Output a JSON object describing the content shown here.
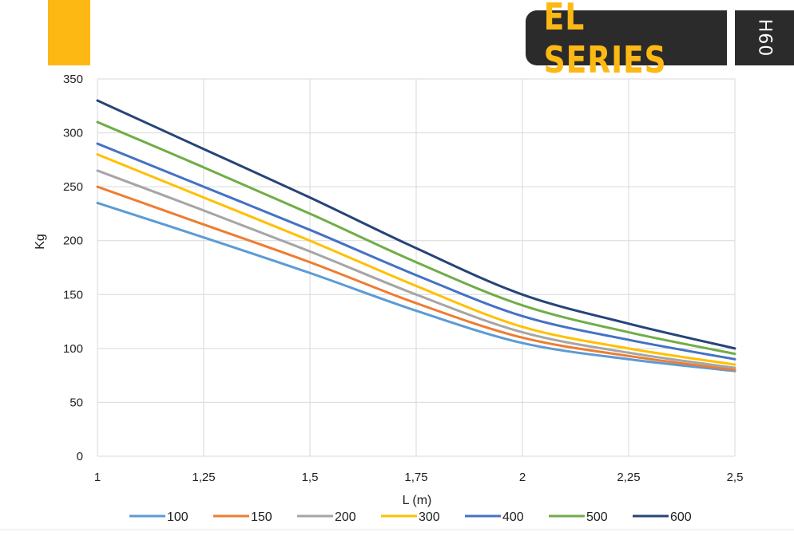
{
  "header": {
    "series_label": "EL SERIES",
    "model_label": "H60",
    "colors": {
      "accent": "#FDB813",
      "badge_bg": "#2b2b2b"
    }
  },
  "chart_data": {
    "type": "line",
    "title": "",
    "xlabel": "L (m)",
    "ylabel": "Kg",
    "x": [
      1,
      1.25,
      1.5,
      1.75,
      2,
      2.25,
      2.5
    ],
    "x_tick_labels": [
      "1",
      "1,25",
      "1,5",
      "1,75",
      "2",
      "2,25",
      "2,5"
    ],
    "y_ticks": [
      0,
      50,
      100,
      150,
      200,
      250,
      300,
      350
    ],
    "xlim": [
      1,
      2.5
    ],
    "ylim": [
      0,
      350
    ],
    "grid": true,
    "legend_position": "bottom",
    "series": [
      {
        "name": "100",
        "color": "#5B9BD5",
        "values": [
          235,
          203,
          170,
          135,
          105,
          90,
          79
        ]
      },
      {
        "name": "150",
        "color": "#ED7D31",
        "values": [
          250,
          215,
          180,
          142,
          110,
          93,
          80
        ]
      },
      {
        "name": "200",
        "color": "#A5A5A5",
        "values": [
          265,
          228,
          190,
          150,
          115,
          96,
          82
        ]
      },
      {
        "name": "300",
        "color": "#FFC000",
        "values": [
          280,
          240,
          200,
          158,
          120,
          100,
          85
        ]
      },
      {
        "name": "400",
        "color": "#4472C4",
        "values": [
          290,
          250,
          210,
          168,
          130,
          108,
          90
        ]
      },
      {
        "name": "500",
        "color": "#70AD47",
        "values": [
          310,
          268,
          225,
          180,
          140,
          115,
          95
        ]
      },
      {
        "name": "600",
        "color": "#264478",
        "values": [
          330,
          285,
          240,
          193,
          150,
          123,
          100
        ]
      }
    ]
  }
}
